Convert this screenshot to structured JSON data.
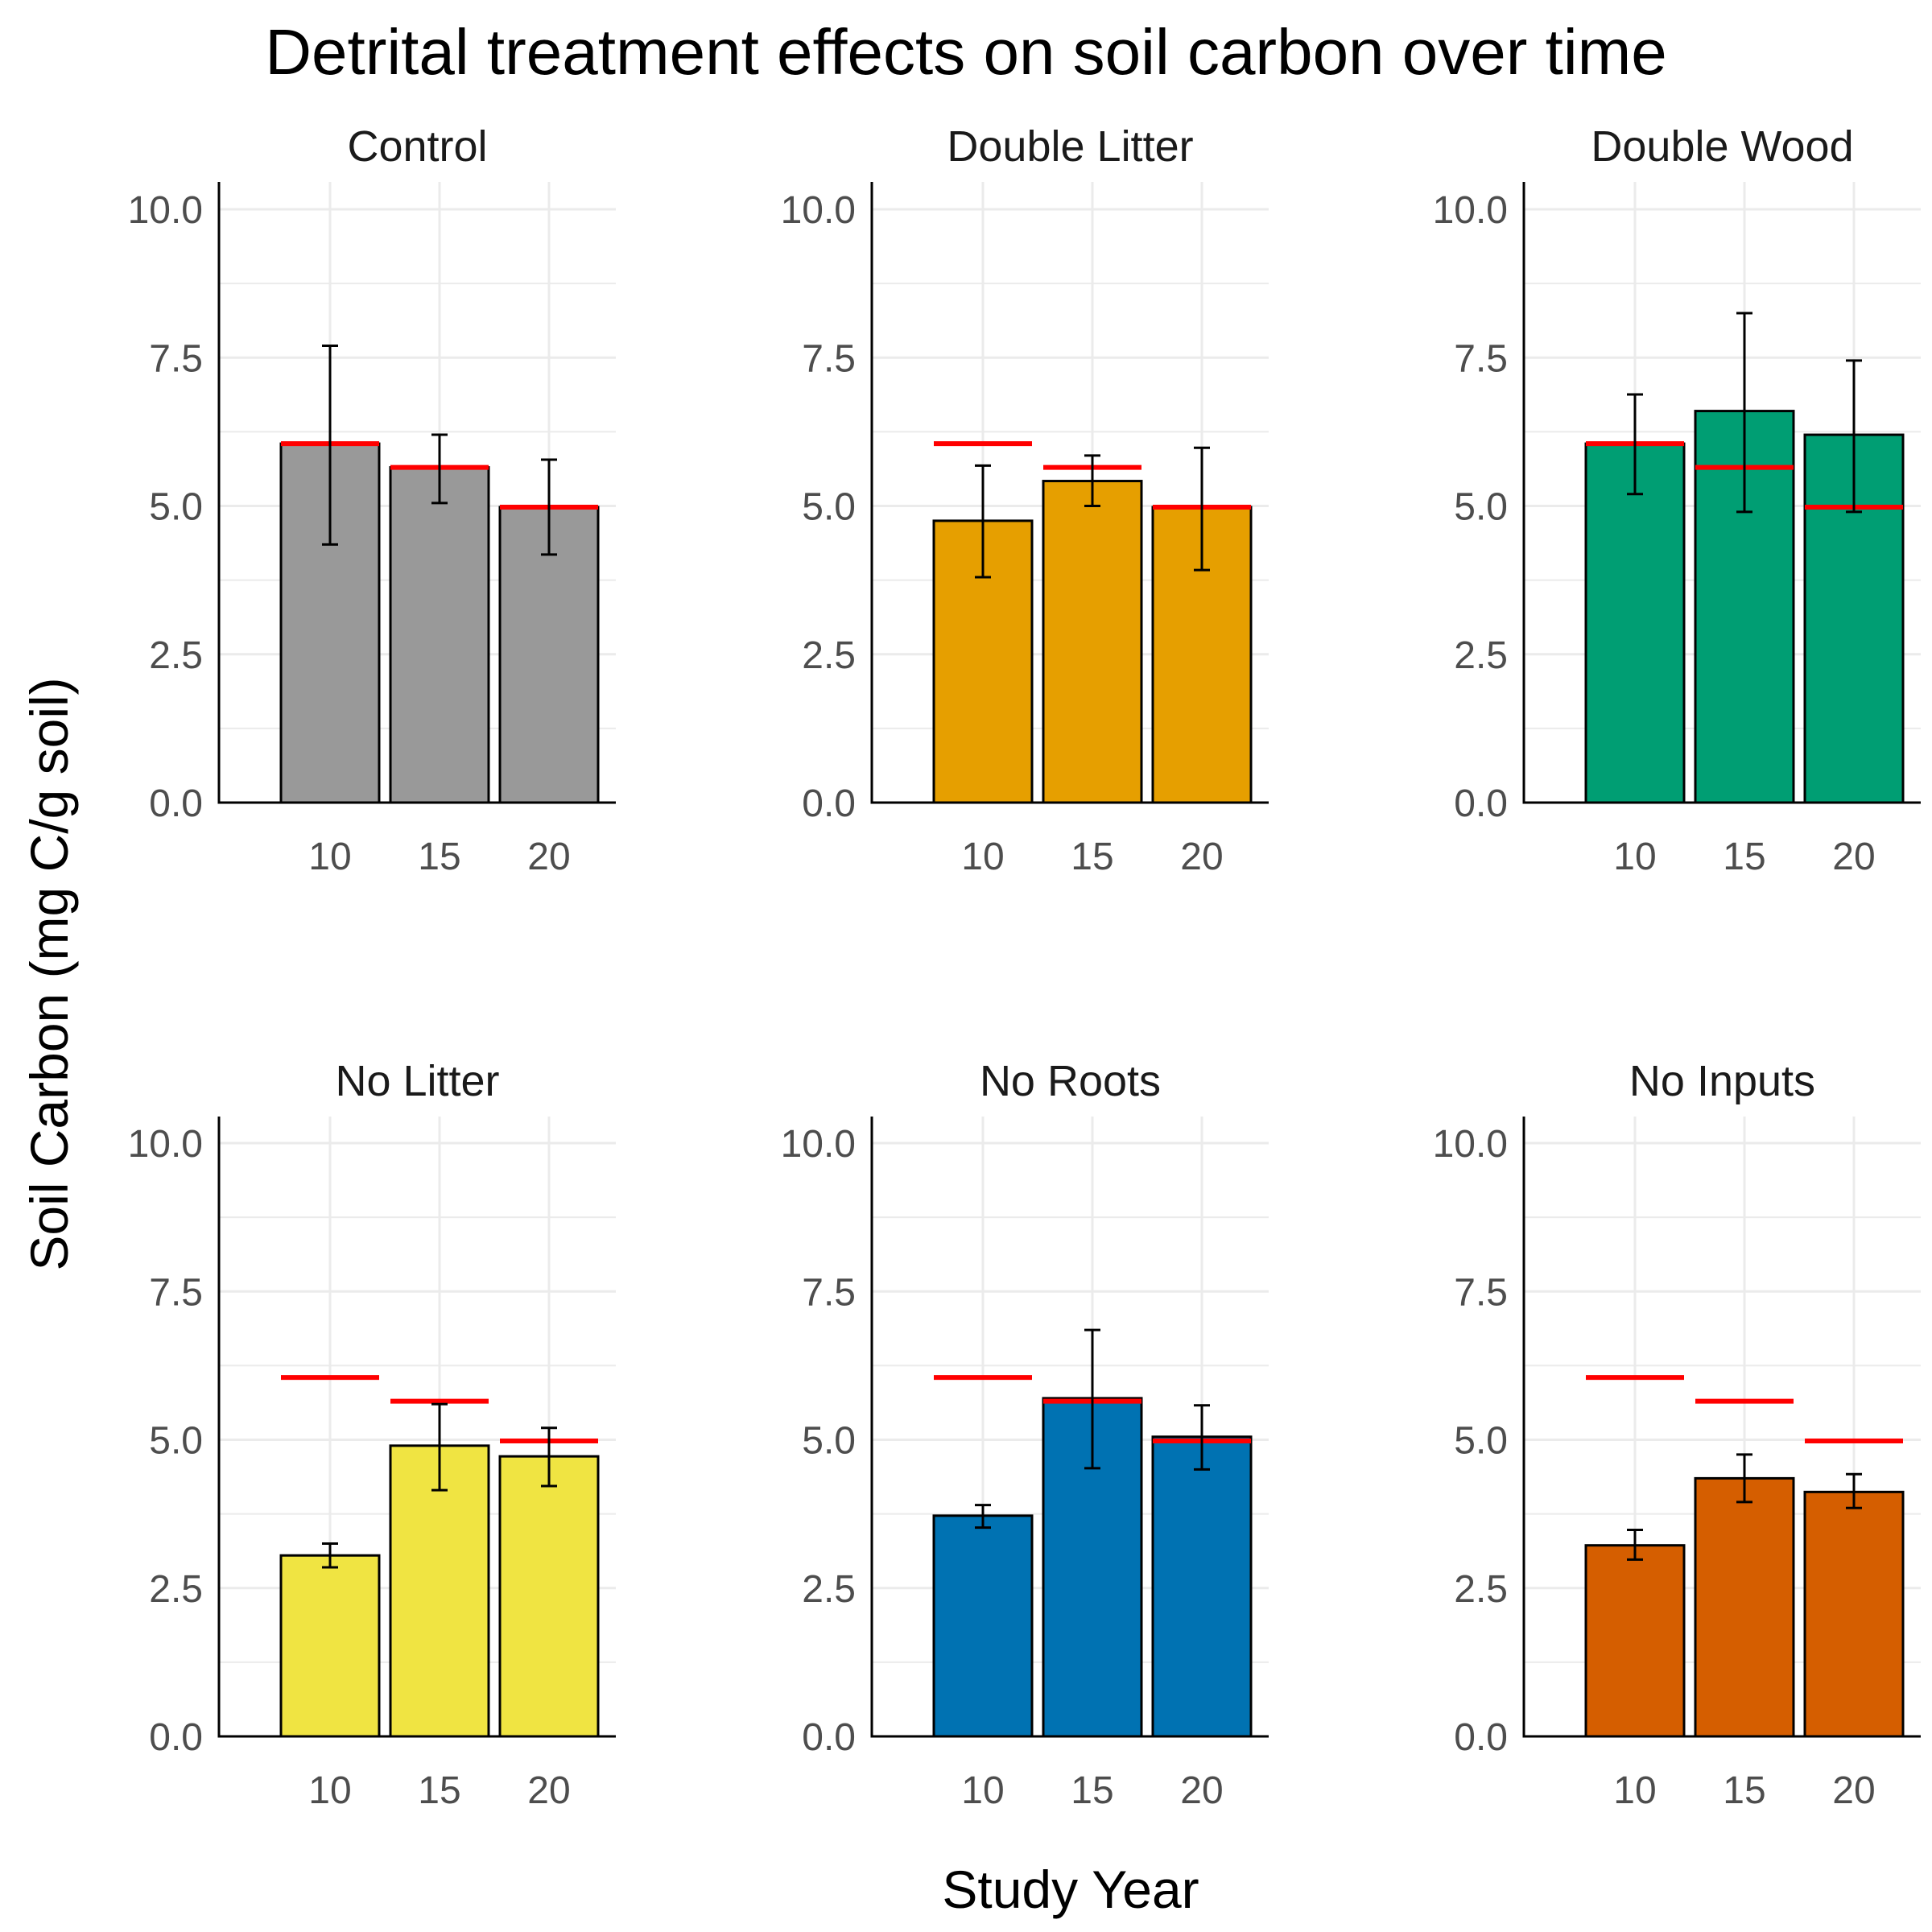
{
  "chart_data": {
    "type": "bar",
    "title": "Detrital treatment effects on soil carbon over time",
    "xlabel": "Study Year",
    "ylabel": "Soil Carbon (mg C/g soil)",
    "categories": [
      "10",
      "15",
      "20"
    ],
    "ylim": [
      0,
      10.5
    ],
    "y_ticks": [
      "0.0",
      "2.5",
      "5.0",
      "7.5",
      "10.0"
    ],
    "grid": true,
    "legend": "none",
    "reference_line_color": "#ff0000",
    "reference_values": [
      6.05,
      5.65,
      4.98
    ],
    "panels": [
      {
        "name": "Control",
        "color": "#999999",
        "values": [
          6.05,
          5.65,
          4.98
        ],
        "err_low": [
          4.35,
          5.05,
          4.18
        ],
        "err_high": [
          7.7,
          6.2,
          5.78
        ]
      },
      {
        "name": "Double Litter",
        "color": "#e69f00",
        "values": [
          4.75,
          5.42,
          4.98
        ],
        "err_low": [
          3.8,
          5.0,
          3.92
        ],
        "err_high": [
          5.68,
          5.85,
          5.98
        ]
      },
      {
        "name": "Double Wood",
        "color": "#009e73",
        "values": [
          6.05,
          6.6,
          6.2
        ],
        "err_low": [
          5.2,
          4.9,
          4.9
        ],
        "err_high": [
          6.88,
          8.25,
          7.45
        ]
      },
      {
        "name": "No Litter",
        "color": "#f0e442",
        "values": [
          3.05,
          4.9,
          4.72
        ],
        "err_low": [
          2.85,
          4.15,
          4.22
        ],
        "err_high": [
          3.25,
          5.6,
          5.2
        ]
      },
      {
        "name": "No Roots",
        "color": "#0072b2",
        "values": [
          3.72,
          5.7,
          5.05
        ],
        "err_low": [
          3.52,
          4.52,
          4.5
        ],
        "err_high": [
          3.9,
          6.85,
          5.58
        ]
      },
      {
        "name": "No Inputs",
        "color": "#d55e00",
        "values": [
          3.22,
          4.35,
          4.12
        ],
        "err_low": [
          2.98,
          3.95,
          3.85
        ],
        "err_high": [
          3.48,
          4.75,
          4.42
        ]
      }
    ]
  }
}
